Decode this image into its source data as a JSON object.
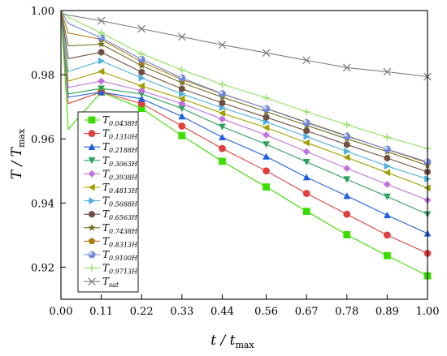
{
  "chart_data": {
    "type": "line",
    "title": "",
    "xlabel": {
      "main": "t / t",
      "sub": "max"
    },
    "ylabel": {
      "main": "T / T",
      "sub": "max"
    },
    "xlim": [
      0,
      1
    ],
    "ylim": [
      0.91,
      1.0
    ],
    "x_ticks": [
      "0.00",
      "0.11",
      "0.22",
      "0.33",
      "0.44",
      "0.56",
      "0.67",
      "0.78",
      "0.89",
      "1.00"
    ],
    "y_ticks": [
      "0.92",
      "0.94",
      "0.96",
      "0.98",
      "1.00"
    ],
    "grid": false,
    "legend_position": "left-middle",
    "x_markers": [
      0.11,
      0.22,
      0.33,
      0.44,
      0.56,
      0.67,
      0.78,
      0.89,
      1.0
    ],
    "series": [
      {
        "main": "T",
        "sub": "0.0438H",
        "color": "#3cdc00",
        "marker": "square",
        "knee": [
          0.02,
          0.963
        ],
        "values": [
          0.9746,
          0.9695,
          0.961,
          0.953,
          0.945,
          0.9374,
          0.9301,
          0.9236,
          0.9173
        ]
      },
      {
        "main": "T",
        "sub": "0.1310H",
        "color": "#e04040",
        "marker": "circle",
        "knee": [
          0.02,
          0.971
        ],
        "values": [
          0.9746,
          0.971,
          0.964,
          0.957,
          0.95,
          0.943,
          0.9365,
          0.93,
          0.9243
        ]
      },
      {
        "main": "T",
        "sub": "0.2188H",
        "color": "#2060e0",
        "marker": "triangle-up",
        "knee": [
          0.02,
          0.973
        ],
        "values": [
          0.9746,
          0.9725,
          0.967,
          0.9605,
          0.9545,
          0.948,
          0.9422,
          0.9362,
          0.9305
        ]
      },
      {
        "main": "T",
        "sub": "0.3063H",
        "color": "#30a060",
        "marker": "triangle-down",
        "knee": [
          0.02,
          0.974
        ],
        "values": [
          0.9757,
          0.974,
          0.9695,
          0.9638,
          0.9583,
          0.9528,
          0.9474,
          0.942,
          0.9365
        ]
      },
      {
        "main": "T",
        "sub": "0.3938H",
        "color": "#c070e0",
        "marker": "diamond",
        "knee": [
          0.02,
          0.976
        ],
        "values": [
          0.978,
          0.975,
          0.971,
          0.9662,
          0.9612,
          0.956,
          0.9508,
          0.9458,
          0.9409
        ]
      },
      {
        "main": "T",
        "sub": "0.4813H",
        "color": "#a0a000",
        "marker": "triangle-left",
        "knee": [
          0.02,
          0.978
        ],
        "values": [
          0.981,
          0.9765,
          0.9725,
          0.968,
          0.9635,
          0.9588,
          0.9542,
          0.9495,
          0.9447
        ]
      },
      {
        "main": "T",
        "sub": "0.5688H",
        "color": "#50b0e0",
        "marker": "triangle-right",
        "knee": [
          0.02,
          0.981
        ],
        "values": [
          0.9843,
          0.979,
          0.974,
          0.9697,
          0.9653,
          0.9607,
          0.9561,
          0.9515,
          0.9475
        ]
      },
      {
        "main": "T",
        "sub": "0.6563H",
        "color": "#705040",
        "marker": "hexagon",
        "knee": [
          0.02,
          0.985
        ],
        "values": [
          0.987,
          0.9808,
          0.9756,
          0.9712,
          0.9667,
          0.9625,
          0.9582,
          0.954,
          0.9497
        ]
      },
      {
        "main": "T",
        "sub": "0.7438H",
        "color": "#707020",
        "marker": "star",
        "knee": [
          0.02,
          0.989
        ],
        "values": [
          0.9895,
          0.9828,
          0.9775,
          0.973,
          0.9685,
          0.9642,
          0.96,
          0.956,
          0.9517
        ]
      },
      {
        "main": "T",
        "sub": "0.8313H",
        "color": "#b07810",
        "marker": "pentagon",
        "knee": [
          0.02,
          0.993
        ],
        "values": [
          0.991,
          0.984,
          0.9785,
          0.974,
          0.9695,
          0.9652,
          0.961,
          0.9567,
          0.9525
        ]
      },
      {
        "main": "T",
        "sub": "0.9100H",
        "color": "#7088d8",
        "marker": "sphere",
        "knee": [
          0.02,
          0.996
        ],
        "values": [
          0.9915,
          0.9848,
          0.979,
          0.9741,
          0.9694,
          0.965,
          0.9608,
          0.9568,
          0.9528
        ]
      },
      {
        "main": "T",
        "sub": "0.9713H",
        "color": "#90e060",
        "marker": "plus",
        "knee": [
          0.02,
          0.998
        ],
        "values": [
          0.993,
          0.9865,
          0.9815,
          0.977,
          0.9728,
          0.9684,
          0.9644,
          0.9605,
          0.957
        ]
      },
      {
        "main": "T",
        "sub": "sat",
        "color": "#808080",
        "marker": "cross",
        "knee": [
          0.0,
          0.999
        ],
        "values": [
          0.9968,
          0.9943,
          0.9918,
          0.9893,
          0.9868,
          0.9845,
          0.9822,
          0.9809,
          0.9794
        ]
      }
    ]
  }
}
